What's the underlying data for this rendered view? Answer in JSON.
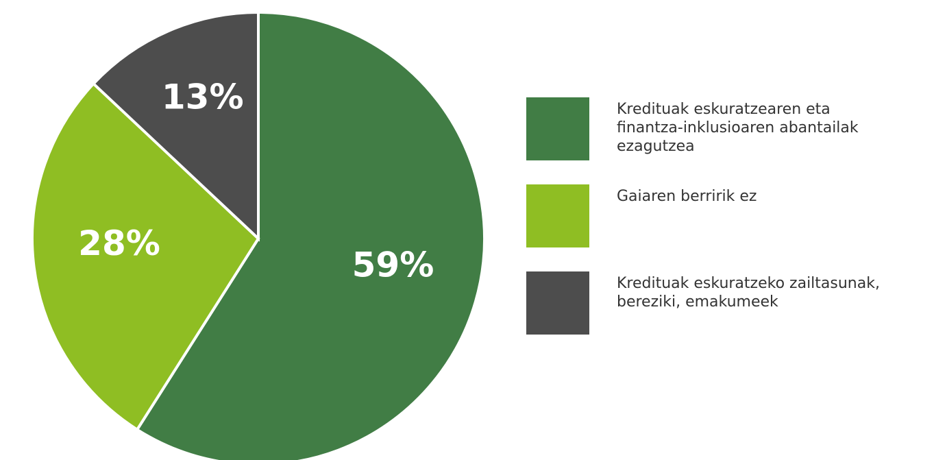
{
  "chart_data": {
    "type": "pie",
    "categories": [
      "Kredituak eskuratzearen eta\nfinantza-inklusioaren abantailak\nezagutzea",
      "Gaiaren berririk ez",
      "Kredituak eskuratzeko zailtasunak,\nbereziki, emakumeek"
    ],
    "values": [
      59,
      28,
      13
    ],
    "value_labels": [
      "59%",
      "28%",
      "13%"
    ],
    "colors": [
      "#417d45",
      "#8fbe23",
      "#4d4d4d"
    ],
    "legend": "right"
  }
}
